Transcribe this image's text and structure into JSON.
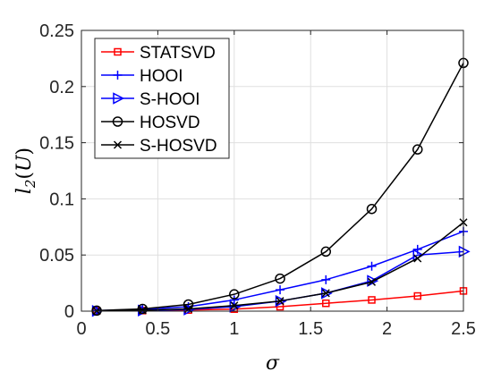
{
  "chart_data": {
    "type": "line",
    "xlabel": "σ",
    "ylabel": "l₂(Û)",
    "ylabel_parts": {
      "main": "l",
      "sub": "2",
      "open": "(",
      "var": "U",
      "hat": "^",
      "close": ")"
    },
    "x": [
      0.1,
      0.4,
      0.7,
      1.0,
      1.3,
      1.6,
      1.9,
      2.2,
      2.5
    ],
    "xlim": [
      0,
      2.5
    ],
    "ylim": [
      0,
      0.25
    ],
    "xticks": [
      "0",
      "0.5",
      "1",
      "1.5",
      "2",
      "2.5"
    ],
    "yticks": [
      "0",
      "0.05",
      "0.1",
      "0.15",
      "0.2",
      "0.25"
    ],
    "xtick_values": [
      0,
      0.5,
      1,
      1.5,
      2,
      2.5
    ],
    "ytick_values": [
      0,
      0.05,
      0.1,
      0.15,
      0.2,
      0.25
    ],
    "grid": true,
    "legend_position": "top-left",
    "series": [
      {
        "name": "STATSVD",
        "color": "#ff0000",
        "marker": "square",
        "values": [
          0.0003,
          0.0005,
          0.001,
          0.0018,
          0.004,
          0.007,
          0.01,
          0.0135,
          0.018
        ]
      },
      {
        "name": "HOOI",
        "color": "#0000ff",
        "marker": "plus",
        "values": [
          0.0005,
          0.0015,
          0.004,
          0.01,
          0.019,
          0.028,
          0.04,
          0.055,
          0.071
        ]
      },
      {
        "name": "S-HOOI",
        "color": "#0000ff",
        "marker": "triangle-right",
        "values": [
          0.0002,
          0.0006,
          0.0015,
          0.004,
          0.009,
          0.016,
          0.027,
          0.05,
          0.053
        ]
      },
      {
        "name": "HOSVD",
        "color": "#000000",
        "marker": "circle",
        "values": [
          0.0005,
          0.002,
          0.006,
          0.015,
          0.029,
          0.053,
          0.091,
          0.144,
          0.221
        ]
      },
      {
        "name": "S-HOSVD",
        "color": "#000000",
        "marker": "x",
        "values": [
          0.0002,
          0.0008,
          0.002,
          0.005,
          0.009,
          0.016,
          0.026,
          0.047,
          0.079
        ]
      }
    ]
  }
}
